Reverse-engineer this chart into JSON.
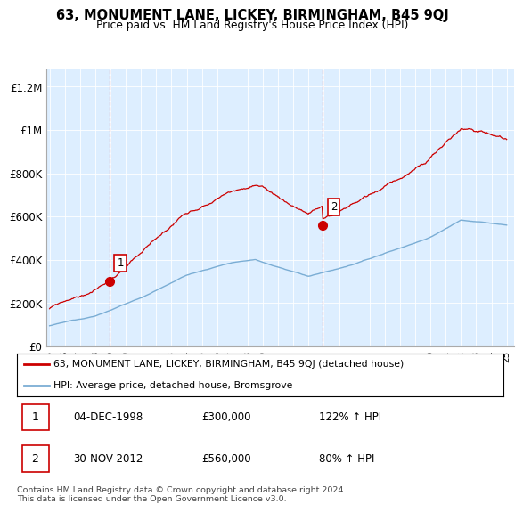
{
  "title": "63, MONUMENT LANE, LICKEY, BIRMINGHAM, B45 9QJ",
  "subtitle": "Price paid vs. HM Land Registry's House Price Index (HPI)",
  "red_label": "63, MONUMENT LANE, LICKEY, BIRMINGHAM, B45 9QJ (detached house)",
  "blue_label": "HPI: Average price, detached house, Bromsgrove",
  "point1_date": "04-DEC-1998",
  "point1_price": "£300,000",
  "point1_hpi": "122% ↑ HPI",
  "point2_date": "30-NOV-2012",
  "point2_price": "£560,000",
  "point2_hpi": "80% ↑ HPI",
  "footer": "Contains HM Land Registry data © Crown copyright and database right 2024.\nThis data is licensed under the Open Government Licence v3.0.",
  "red_color": "#cc0000",
  "blue_color": "#7aadd4",
  "bg_color": "#ddeeff",
  "xlim": [
    1994.8,
    2025.5
  ],
  "ylim": [
    0,
    1280000
  ],
  "yticks": [
    0,
    200000,
    400000,
    600000,
    800000,
    1000000,
    1200000
  ],
  "ytick_labels": [
    "£0",
    "£200K",
    "£400K",
    "£600K",
    "£800K",
    "£1M",
    "£1.2M"
  ],
  "xticks": [
    1995,
    1996,
    1997,
    1998,
    1999,
    2000,
    2001,
    2002,
    2003,
    2004,
    2005,
    2006,
    2007,
    2008,
    2009,
    2010,
    2011,
    2012,
    2013,
    2014,
    2015,
    2016,
    2017,
    2018,
    2019,
    2020,
    2021,
    2022,
    2023,
    2024,
    2025
  ],
  "point1_x": 1998.92,
  "point1_y": 300000,
  "point2_x": 2012.92,
  "point2_y": 560000
}
